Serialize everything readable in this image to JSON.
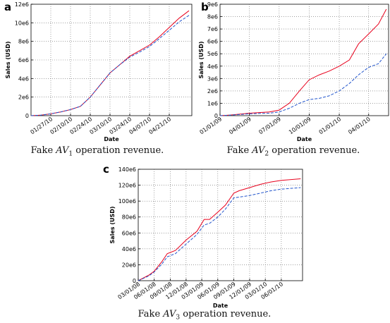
{
  "chart_data": [
    {
      "type": "line",
      "panel_letter": "a",
      "caption": {
        "prefix": "Fake ",
        "sym": "AV",
        "sub": "1",
        "suffix": " operation revenue."
      },
      "xlabel": "Date",
      "ylabel": "Sales (USD)",
      "grid": true,
      "ylim": [
        0,
        12000000
      ],
      "xlim": [
        "2010-01-13",
        "2010-05-07"
      ],
      "x_ticks": [
        {
          "date": "2010-01-27",
          "label": "01/27/10"
        },
        {
          "date": "2010-02-10",
          "label": "02/10/10"
        },
        {
          "date": "2010-02-24",
          "label": "02/24/10"
        },
        {
          "date": "2010-03-10",
          "label": "03/10/10"
        },
        {
          "date": "2010-03-24",
          "label": "03/24/10"
        },
        {
          "date": "2010-04-07",
          "label": "04/07/10"
        },
        {
          "date": "2010-04-21",
          "label": "04/21/10"
        }
      ],
      "y_ticks": [
        {
          "value": 0,
          "label": "0"
        },
        {
          "value": 2000000,
          "label": "2e6"
        },
        {
          "value": 4000000,
          "label": "4e6"
        },
        {
          "value": 6000000,
          "label": "6e6"
        },
        {
          "value": 8000000,
          "label": "8e6"
        },
        {
          "value": 10000000,
          "label": "10e6"
        },
        {
          "value": 12000000,
          "label": "12e6"
        }
      ],
      "series": [
        {
          "color": "#e8001c",
          "dash": "solid",
          "x": [
            "2010-01-13",
            "2010-01-20",
            "2010-01-27",
            "2010-02-03",
            "2010-02-10",
            "2010-02-17",
            "2010-02-24",
            "2010-03-03",
            "2010-03-10",
            "2010-03-17",
            "2010-03-24",
            "2010-03-31",
            "2010-04-07",
            "2010-04-14",
            "2010-04-21",
            "2010-04-28",
            "2010-05-05"
          ],
          "y": [
            0,
            50000,
            200000,
            400000,
            650000,
            1000000,
            2000000,
            3300000,
            4600000,
            5500000,
            6400000,
            7000000,
            7600000,
            8500000,
            9500000,
            10500000,
            11300000
          ]
        },
        {
          "color": "#2255cc",
          "dash": "dashed",
          "x": [
            "2010-01-13",
            "2010-01-20",
            "2010-01-27",
            "2010-02-03",
            "2010-02-10",
            "2010-02-17",
            "2010-02-24",
            "2010-03-03",
            "2010-03-10",
            "2010-03-17",
            "2010-03-24",
            "2010-03-31",
            "2010-04-07",
            "2010-04-14",
            "2010-04-21",
            "2010-04-28",
            "2010-05-05"
          ],
          "y": [
            0,
            50000,
            200000,
            400000,
            650000,
            1000000,
            2000000,
            3300000,
            4600000,
            5500000,
            6300000,
            6850000,
            7450000,
            8300000,
            9200000,
            10100000,
            10800000
          ]
        }
      ]
    },
    {
      "type": "line",
      "panel_letter": "b",
      "caption": {
        "prefix": "Fake ",
        "sym": "AV",
        "sub": "2",
        "suffix": " operation revenue."
      },
      "xlabel": "Date",
      "ylabel": "Sales (USD)",
      "grid": true,
      "ylim": [
        0,
        9000000
      ],
      "xlim": [
        "2009-01-01",
        "2010-06-01"
      ],
      "x_ticks": [
        {
          "date": "2009-01-01",
          "label": "01/01/09"
        },
        {
          "date": "2009-04-01",
          "label": "04/01/09"
        },
        {
          "date": "2009-07-01",
          "label": "07/01/09"
        },
        {
          "date": "2009-10-01",
          "label": "10/01/09"
        },
        {
          "date": "2010-01-01",
          "label": "01/01/10"
        },
        {
          "date": "2010-04-01",
          "label": "04/01/10"
        }
      ],
      "y_ticks": [
        {
          "value": 0,
          "label": "0"
        },
        {
          "value": 1000000,
          "label": "1e6"
        },
        {
          "value": 2000000,
          "label": "2e6"
        },
        {
          "value": 3000000,
          "label": "3e6"
        },
        {
          "value": 4000000,
          "label": "4e6"
        },
        {
          "value": 5000000,
          "label": "5e6"
        },
        {
          "value": 6000000,
          "label": "6e6"
        },
        {
          "value": 7000000,
          "label": "7e6"
        },
        {
          "value": 8000000,
          "label": "8e6"
        },
        {
          "value": 9000000,
          "label": "9e6"
        }
      ],
      "series": [
        {
          "color": "#e8001c",
          "dash": "solid",
          "x": [
            "2009-01-01",
            "2009-02-01",
            "2009-03-01",
            "2009-04-01",
            "2009-05-01",
            "2009-06-01",
            "2009-07-01",
            "2009-08-01",
            "2009-09-01",
            "2009-10-01",
            "2009-11-01",
            "2009-12-01",
            "2010-01-01",
            "2010-02-01",
            "2010-03-01",
            "2010-04-01",
            "2010-05-01",
            "2010-05-25"
          ],
          "y": [
            0,
            50000,
            120000,
            200000,
            250000,
            300000,
            450000,
            1000000,
            2000000,
            2900000,
            3300000,
            3600000,
            4000000,
            4500000,
            5800000,
            6600000,
            7400000,
            8600000
          ]
        },
        {
          "color": "#2255cc",
          "dash": "dashed",
          "x": [
            "2009-01-01",
            "2009-02-01",
            "2009-03-01",
            "2009-04-01",
            "2009-05-01",
            "2009-06-01",
            "2009-07-01",
            "2009-08-01",
            "2009-09-01",
            "2009-10-01",
            "2009-11-01",
            "2009-12-01",
            "2010-01-01",
            "2010-02-01",
            "2010-03-01",
            "2010-04-01",
            "2010-05-01",
            "2010-05-25"
          ],
          "y": [
            0,
            40000,
            90000,
            150000,
            180000,
            200000,
            300000,
            600000,
            1000000,
            1300000,
            1400000,
            1600000,
            2000000,
            2600000,
            3300000,
            3900000,
            4200000,
            5000000
          ]
        }
      ]
    },
    {
      "type": "line",
      "panel_letter": "c",
      "caption": {
        "prefix": "Fake ",
        "sym": "AV",
        "sub": "3",
        "suffix": " operation revenue."
      },
      "xlabel": "Date",
      "ylabel": "Sales (USD)",
      "grid": true,
      "ylim": [
        0,
        140000000
      ],
      "xlim": [
        "2008-03-01",
        "2010-10-01"
      ],
      "x_ticks": [
        {
          "date": "2008-03-01",
          "label": "03/01/08"
        },
        {
          "date": "2008-06-01",
          "label": "06/01/08"
        },
        {
          "date": "2008-09-01",
          "label": "09/01/08"
        },
        {
          "date": "2008-12-01",
          "label": "12/01/08"
        },
        {
          "date": "2009-03-01",
          "label": "03/01/09"
        },
        {
          "date": "2009-06-01",
          "label": "06/01/09"
        },
        {
          "date": "2009-09-01",
          "label": "09/01/09"
        },
        {
          "date": "2009-12-01",
          "label": "12/01/09"
        },
        {
          "date": "2010-03-01",
          "label": "03/01/10"
        },
        {
          "date": "2010-06-01",
          "label": "06/01/10"
        }
      ],
      "y_ticks": [
        {
          "value": 0,
          "label": "0"
        },
        {
          "value": 20000000,
          "label": "20e6"
        },
        {
          "value": 40000000,
          "label": "40e6"
        },
        {
          "value": 60000000,
          "label": "60e6"
        },
        {
          "value": 80000000,
          "label": "80e6"
        },
        {
          "value": 100000000,
          "label": "100e6"
        },
        {
          "value": 120000000,
          "label": "120e6"
        },
        {
          "value": 140000000,
          "label": "140e6"
        }
      ],
      "series": [
        {
          "color": "#e8001c",
          "dash": "solid",
          "x": [
            "2008-03-01",
            "2008-05-01",
            "2008-06-01",
            "2008-07-15",
            "2008-08-15",
            "2008-10-01",
            "2008-12-01",
            "2009-02-01",
            "2009-03-15",
            "2009-04-15",
            "2009-06-01",
            "2009-07-15",
            "2009-09-01",
            "2009-10-01",
            "2009-12-01",
            "2010-02-01",
            "2010-04-01",
            "2010-06-01",
            "2010-09-20"
          ],
          "y": [
            0,
            7000000,
            12000000,
            24000000,
            34000000,
            38000000,
            51000000,
            62000000,
            77000000,
            77000000,
            86000000,
            95000000,
            110000000,
            113000000,
            117000000,
            121000000,
            124000000,
            126000000,
            128000000
          ]
        },
        {
          "color": "#2255cc",
          "dash": "dashed",
          "x": [
            "2008-03-01",
            "2008-05-01",
            "2008-06-01",
            "2008-07-15",
            "2008-08-15",
            "2008-10-01",
            "2008-12-01",
            "2009-02-01",
            "2009-03-15",
            "2009-04-15",
            "2009-06-01",
            "2009-07-15",
            "2009-09-01",
            "2009-10-01",
            "2009-12-01",
            "2010-02-01",
            "2010-04-01",
            "2010-06-01",
            "2010-09-20"
          ],
          "y": [
            0,
            6000000,
            11000000,
            21000000,
            30000000,
            34000000,
            46000000,
            58000000,
            70000000,
            72000000,
            80000000,
            90000000,
            104000000,
            105000000,
            107000000,
            110000000,
            113000000,
            115000000,
            117000000
          ]
        }
      ]
    }
  ]
}
